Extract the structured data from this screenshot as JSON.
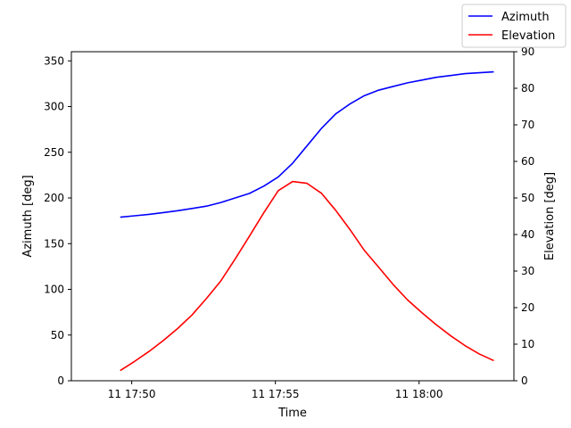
{
  "chart_data": {
    "type": "line",
    "xlabel": "Time",
    "ylabel_left": "Azimuth [deg]",
    "ylabel_right": "Elevation [deg]",
    "x_tick_labels": [
      "11 17:50",
      "11 17:55",
      "11 18:00"
    ],
    "x_tick_minutes": [
      50,
      55,
      60
    ],
    "xlim_minutes": [
      47.9,
      63.3
    ],
    "y_left_lim": [
      0,
      360
    ],
    "y_left_ticks": [
      0,
      50,
      100,
      150,
      200,
      250,
      300,
      350
    ],
    "y_right_lim": [
      0,
      90
    ],
    "y_right_ticks": [
      0,
      10,
      20,
      30,
      40,
      50,
      60,
      70,
      80,
      90
    ],
    "legend_position": "top-right",
    "x_minutes": [
      49.6,
      50.1,
      50.6,
      51.1,
      51.6,
      52.1,
      52.6,
      53.1,
      53.6,
      54.1,
      54.6,
      55.1,
      55.6,
      56.1,
      56.6,
      57.1,
      57.6,
      58.1,
      58.6,
      59.1,
      59.6,
      60.1,
      60.6,
      61.1,
      61.6,
      62.1,
      62.6
    ],
    "series": [
      {
        "name": "Azimuth",
        "axis": "left",
        "color": "#0000ff",
        "values": [
          179,
          180.5,
          182,
          184,
          186,
          188.5,
          191,
          195,
          200,
          205,
          213,
          223,
          238,
          257,
          276,
          292,
          303,
          312,
          318,
          322,
          326,
          329,
          332,
          334,
          336,
          337,
          338
        ]
      },
      {
        "name": "Elevation",
        "axis": "right",
        "color": "#ff0000",
        "values": [
          2.8,
          5.3,
          8.0,
          11.0,
          14.3,
          18.0,
          22.5,
          27.3,
          33.3,
          39.6,
          46.0,
          52.0,
          54.5,
          54.0,
          51.3,
          46.6,
          41.3,
          35.6,
          31.0,
          26.3,
          22.1,
          18.6,
          15.3,
          12.3,
          9.6,
          7.3,
          5.5
        ]
      }
    ]
  }
}
